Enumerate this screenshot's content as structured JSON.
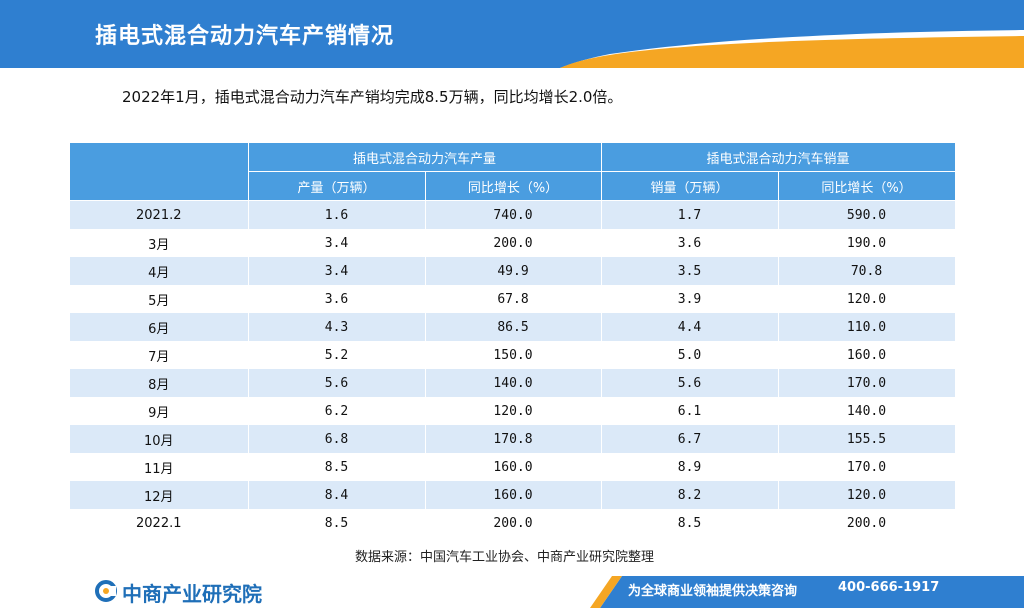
{
  "header": {
    "title": "插电式混合动力汽车产销情况"
  },
  "summary": "2022年1月，插电式混合动力汽车产销均完成8.5万辆，同比均增长2.0倍。",
  "table": {
    "group_production": "插电式混合动力汽车产量",
    "group_sales": "插电式混合动力汽车销量",
    "col_production": "产量（万辆）",
    "col_production_growth": "同比增长（%）",
    "col_sales": "销量（万辆）",
    "col_sales_growth": "同比增长（%）",
    "rows": [
      {
        "period": "2021.2",
        "production": "1.6",
        "production_growth": "740.0",
        "sales": "1.7",
        "sales_growth": "590.0"
      },
      {
        "period": "3月",
        "production": "3.4",
        "production_growth": "200.0",
        "sales": "3.6",
        "sales_growth": "190.0"
      },
      {
        "period": "4月",
        "production": "3.4",
        "production_growth": "49.9",
        "sales": "3.5",
        "sales_growth": "70.8"
      },
      {
        "period": "5月",
        "production": "3.6",
        "production_growth": "67.8",
        "sales": "3.9",
        "sales_growth": "120.0"
      },
      {
        "period": "6月",
        "production": "4.3",
        "production_growth": "86.5",
        "sales": "4.4",
        "sales_growth": "110.0"
      },
      {
        "period": "7月",
        "production": "5.2",
        "production_growth": "150.0",
        "sales": "5.0",
        "sales_growth": "160.0"
      },
      {
        "period": "8月",
        "production": "5.6",
        "production_growth": "140.0",
        "sales": "5.6",
        "sales_growth": "170.0"
      },
      {
        "period": "9月",
        "production": "6.2",
        "production_growth": "120.0",
        "sales": "6.1",
        "sales_growth": "140.0"
      },
      {
        "period": "10月",
        "production": "6.8",
        "production_growth": "170.8",
        "sales": "6.7",
        "sales_growth": "155.5"
      },
      {
        "period": "11月",
        "production": "8.5",
        "production_growth": "160.0",
        "sales": "8.9",
        "sales_growth": "170.0"
      },
      {
        "period": "12月",
        "production": "8.4",
        "production_growth": "160.0",
        "sales": "8.2",
        "sales_growth": "120.0"
      },
      {
        "period": "2022.1",
        "production": "8.5",
        "production_growth": "200.0",
        "sales": "8.5",
        "sales_growth": "200.0"
      }
    ]
  },
  "source": "数据来源：中国汽车工业协会、中商产业研究院整理",
  "footer": {
    "logo_text": "中商产业研究院",
    "slogan": "为全球商业领袖提供决策咨询",
    "phone": "400-666-1917"
  },
  "colors": {
    "header_blue": "#2f7fd0",
    "accent_orange": "#f5a623",
    "table_header": "#4a9de0",
    "row_stripe": "#dbe9f8"
  }
}
